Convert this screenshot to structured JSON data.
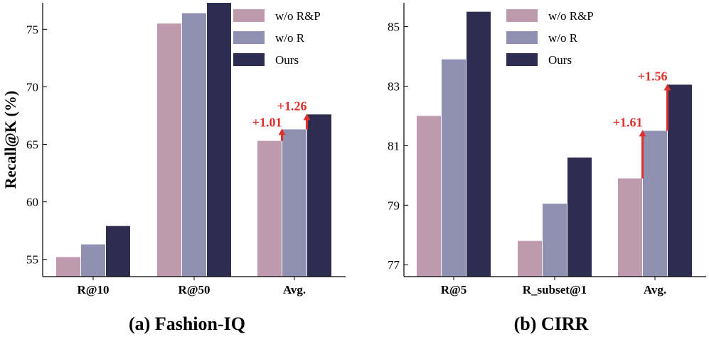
{
  "colors": {
    "wo_rp": "#bf9aae",
    "wo_r": "#9090b2",
    "ours": "#2f2c52",
    "annotation": "#e0302a"
  },
  "chart_data": [
    {
      "type": "bar",
      "caption": "(a) Fashion-IQ",
      "ylabel": "Recall@K (%)",
      "categories": [
        "R@10",
        "R@50",
        "Avg."
      ],
      "series": [
        {
          "name": "w/o R&P",
          "values": [
            55.2,
            75.5,
            65.3
          ]
        },
        {
          "name": "w/o R",
          "values": [
            56.3,
            76.4,
            66.3
          ]
        },
        {
          "name": "Ours",
          "values": [
            57.9,
            77.3,
            67.6
          ]
        }
      ],
      "ylim": [
        53.5,
        77.3
      ],
      "yticks": [
        55,
        60,
        65,
        70,
        75
      ],
      "legend": "top-right",
      "annotations": [
        {
          "text": "+1.01",
          "category": "Avg.",
          "from": 65.3,
          "to": 66.3
        },
        {
          "text": "+1.26",
          "category": "Avg.",
          "from": 66.3,
          "to": 67.6
        }
      ]
    },
    {
      "type": "bar",
      "caption": "(b) CIRR",
      "ylabel": "",
      "categories": [
        "R@5",
        "R_subset@1",
        "Avg."
      ],
      "series": [
        {
          "name": "w/o R&P",
          "values": [
            82.0,
            77.8,
            79.9
          ]
        },
        {
          "name": "w/o R",
          "values": [
            83.9,
            79.05,
            81.5
          ]
        },
        {
          "name": "Ours",
          "values": [
            85.5,
            80.6,
            83.05
          ]
        }
      ],
      "ylim": [
        76.6,
        85.8
      ],
      "yticks": [
        77,
        79,
        81,
        83,
        85
      ],
      "legend": "top-right",
      "annotations": [
        {
          "text": "+1.61",
          "category": "Avg.",
          "from": 79.9,
          "to": 81.5
        },
        {
          "text": "+1.56",
          "category": "Avg.",
          "from": 81.5,
          "to": 83.05
        }
      ]
    }
  ]
}
